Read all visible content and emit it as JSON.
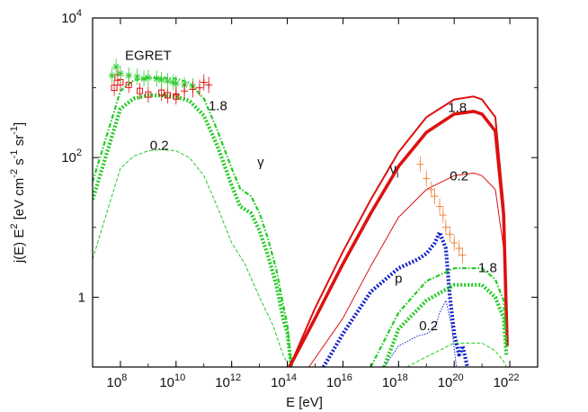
{
  "chart_data": {
    "type": "line",
    "title": "",
    "xlabel": "E [eV]",
    "ylabel": "j(E) E^2 [eV cm^-2 s^-1 sr^-1]",
    "x_scale": "log",
    "y_scale": "log",
    "xlim": [
      10000000.0,
      1e+23
    ],
    "ylim": [
      0.1,
      10000
    ],
    "x_ticks": [
      {
        "base": "10",
        "exp": "8",
        "value": 100000000.0
      },
      {
        "base": "10",
        "exp": "10",
        "value": 10000000000.0
      },
      {
        "base": "10",
        "exp": "12",
        "value": 1000000000000.0
      },
      {
        "base": "10",
        "exp": "14",
        "value": 100000000000000.0
      },
      {
        "base": "10",
        "exp": "16",
        "value": 1e+16
      },
      {
        "base": "10",
        "exp": "18",
        "value": 1e+18
      },
      {
        "base": "10",
        "exp": "20",
        "value": 1e+20
      },
      {
        "base": "10",
        "exp": "22",
        "value": 1e+22
      }
    ],
    "y_ticks": [
      {
        "base": "1",
        "exp": "",
        "value": 1
      },
      {
        "base": "10",
        "exp": "2",
        "value": 100
      },
      {
        "base": "10",
        "exp": "4",
        "value": 10000
      }
    ],
    "annotations": [
      {
        "text": "EGRET",
        "x": 1000000000.0,
        "y": 2500
      },
      {
        "text": "1.8",
        "x": 320000000000.0,
        "y": 480
      },
      {
        "text": "0.2",
        "x": 2500000000.0,
        "y": 130
      },
      {
        "text": "γ",
        "x": 11000000000000.0,
        "y": 75
      },
      {
        "text": "1.8",
        "x": 1.3e+20,
        "y": 450
      },
      {
        "text": "ν",
        "sub": "i",
        "x": 7e+17,
        "y": 60
      },
      {
        "text": "0.2",
        "x": 1.5e+20,
        "y": 47
      },
      {
        "text": "p",
        "x": 1e+18,
        "y": 1.6
      },
      {
        "text": "1.8",
        "x": 1.6e+21,
        "y": 2.3
      },
      {
        "text": "0.2",
        "x": 1.2e+19,
        "y": 0.34
      }
    ],
    "series": [
      {
        "color": "#22cc22",
        "style": "thick-dotted",
        "x": [
          10000000.0,
          100000000.0,
          300000000.0,
          1000000000.0,
          3000000000.0,
          10000000000.0,
          30000000000.0,
          100000000000.0,
          300000000000.0,
          1000000000000.0,
          2000000000000.0,
          5000000000000.0,
          10000000000000.0,
          20000000000000.0,
          40000000000000.0,
          70000000000000.0,
          100000000000000.0,
          140000000000000.0
        ],
        "values": [
          25,
          500,
          700,
          780,
          780,
          740,
          650,
          400,
          150,
          40,
          20,
          16,
          9,
          4,
          1.5,
          0.5,
          0.3,
          0.1
        ]
      },
      {
        "color": "#22cc22",
        "style": "dash-dot",
        "x": [
          10000000.0,
          100000000.0,
          300000000.0,
          1000000000.0,
          3000000000.0,
          10000000000.0,
          30000000000.0,
          100000000000.0,
          300000000000.0,
          1000000000000.0,
          2000000000000.0,
          5000000000000.0,
          10000000000000.0,
          20000000000000.0,
          40000000000000.0,
          70000000000000.0,
          100000000000000.0,
          140000000000000.0
        ],
        "values": [
          45,
          900,
          1280,
          1380,
          1400,
          1350,
          1180,
          700,
          250,
          70,
          36,
          28,
          16,
          7,
          2.5,
          0.8,
          0.4,
          0.1
        ]
      },
      {
        "color": "#22cc22",
        "style": "thin-dashed",
        "x": [
          10000000.0,
          100000000.0,
          300000000.0,
          1000000000.0,
          3000000000.0,
          10000000000.0,
          30000000000.0,
          100000000000.0,
          300000000000.0,
          1000000000000.0,
          3000000000000.0,
          10000000000000.0,
          30000000000000.0,
          70000000000000.0,
          120000000000000.0
        ],
        "values": [
          3.5,
          70,
          105,
          125,
          130,
          125,
          100,
          55,
          20,
          6,
          3,
          1,
          0.4,
          0.15,
          0.1
        ]
      },
      {
        "color": "#dd1111",
        "style": "solid",
        "x": [
          120000000000000.0,
          1000000000000000.0,
          1e+16,
          1e+17,
          1e+18,
          1e+19,
          1e+20,
          5e+20,
          1e+21,
          3e+21,
          6e+21,
          8e+21
        ],
        "values": [
          0.1,
          0.7,
          4.5,
          25,
          120,
          380,
          680,
          750,
          680,
          380,
          20,
          0.2
        ]
      },
      {
        "color": "#dd1111",
        "style": "thick-solid",
        "x": [
          120000000000000.0,
          1000000000000000.0,
          1e+16,
          1e+17,
          1e+18,
          1e+19,
          1e+20,
          5e+20,
          1e+21,
          3e+21,
          6e+21,
          8e+21
        ],
        "values": [
          0.1,
          0.5,
          3,
          16,
          75,
          230,
          420,
          460,
          420,
          240,
          15,
          0.2
        ]
      },
      {
        "color": "#dd1111",
        "style": "thin-solid",
        "x": [
          600000000000000.0,
          1e+16,
          1e+17,
          1e+18,
          1e+19,
          1e+20,
          5e+20,
          1e+21,
          3e+21,
          6e+21,
          8e+21
        ],
        "values": [
          0.1,
          0.5,
          2.8,
          14,
          35,
          55,
          60,
          55,
          35,
          5,
          0.2
        ]
      },
      {
        "color": "#1122cc",
        "style": "thick-dotted",
        "x": [
          2000000000000000.0,
          1e+16,
          1e+17,
          1e+18,
          5e+18,
          1e+19,
          2e+19,
          3e+19,
          5e+19,
          7e+19,
          1e+20,
          1.5e+20,
          2e+20,
          3e+20
        ],
        "values": [
          0.1,
          0.3,
          1.2,
          2.6,
          3.5,
          4.2,
          6,
          8.5,
          5,
          1,
          0.3,
          0.15,
          0.2,
          0.1
        ]
      },
      {
        "color": "#1122cc",
        "style": "thin-dotted",
        "x": [
          3e+17,
          1e+18,
          5e+18,
          1e+19,
          2e+19,
          3e+19,
          5e+19,
          8e+19,
          1.2e+20
        ],
        "values": [
          0.1,
          0.2,
          0.28,
          0.3,
          0.35,
          0.6,
          0.9,
          0.4,
          0.1
        ]
      },
      {
        "color": "#22cc22",
        "style": "thick-dotted",
        "x": [
          3e+17,
          1e+18,
          1e+19,
          1e+20,
          1e+21,
          3e+21,
          6e+21,
          7.5e+21
        ],
        "values": [
          0.1,
          0.35,
          0.9,
          1.5,
          1.5,
          1.0,
          0.5,
          0.15
        ]
      },
      {
        "color": "#22cc22",
        "style": "dash-dot",
        "x": [
          1e+17,
          1e+18,
          1e+19,
          1e+20,
          1e+21,
          3e+21,
          6e+21,
          7.5e+21
        ],
        "values": [
          0.1,
          0.6,
          1.7,
          2.6,
          2.6,
          1.8,
          0.9,
          0.2
        ]
      },
      {
        "color": "#22cc22",
        "style": "thin-dashed",
        "x": [
          2e+18,
          1e+19,
          1e+20,
          1e+21,
          3e+21,
          6e+21,
          7.5e+21
        ],
        "values": [
          0.1,
          0.14,
          0.22,
          0.22,
          0.17,
          0.12,
          0.1
        ]
      }
    ],
    "data_points": [
      {
        "color": "#dd1111",
        "marker": "square",
        "x": [
          60000000.0,
          80000000.0,
          100000000.0,
          200000000.0,
          500000000.0,
          1000000000.0,
          3000000000.0,
          5000000000.0,
          10000000000.0
        ],
        "values": [
          1000,
          1400,
          1200,
          1100,
          900,
          800,
          850,
          780,
          750
        ]
      },
      {
        "color": "#33cc33",
        "marker": "asterisk",
        "x": [
          50000000.0,
          70000000.0,
          100000000.0,
          200000000.0,
          400000000.0,
          700000000.0,
          1000000000.0,
          2000000000.0,
          3000000000.0,
          5000000000.0,
          8000000000.0,
          10000000000.0,
          20000000000.0,
          40000000000.0
        ],
        "values": [
          1500,
          2000,
          1600,
          1500,
          1450,
          1350,
          1400,
          1350,
          1300,
          1250,
          1200,
          1150,
          1100,
          1050
        ]
      },
      {
        "color": "#dd1111",
        "marker": "plus",
        "x": [
          10000000000.0,
          20000000000.0,
          40000000000.0,
          70000000000.0,
          100000000000.0,
          150000000000.0
        ],
        "values": [
          800,
          900,
          950,
          1000,
          1200,
          1100
        ]
      },
      {
        "color": "#ee8844",
        "marker": "plus",
        "x": [
          6e+18,
          1e+19,
          1.5e+19,
          2e+19,
          3e+19,
          4e+19,
          5e+19,
          7e+19,
          1e+20,
          1.5e+20,
          2e+20
        ],
        "values": [
          80,
          50,
          35,
          28,
          20,
          15,
          10,
          8,
          6,
          5,
          4
        ]
      }
    ]
  }
}
